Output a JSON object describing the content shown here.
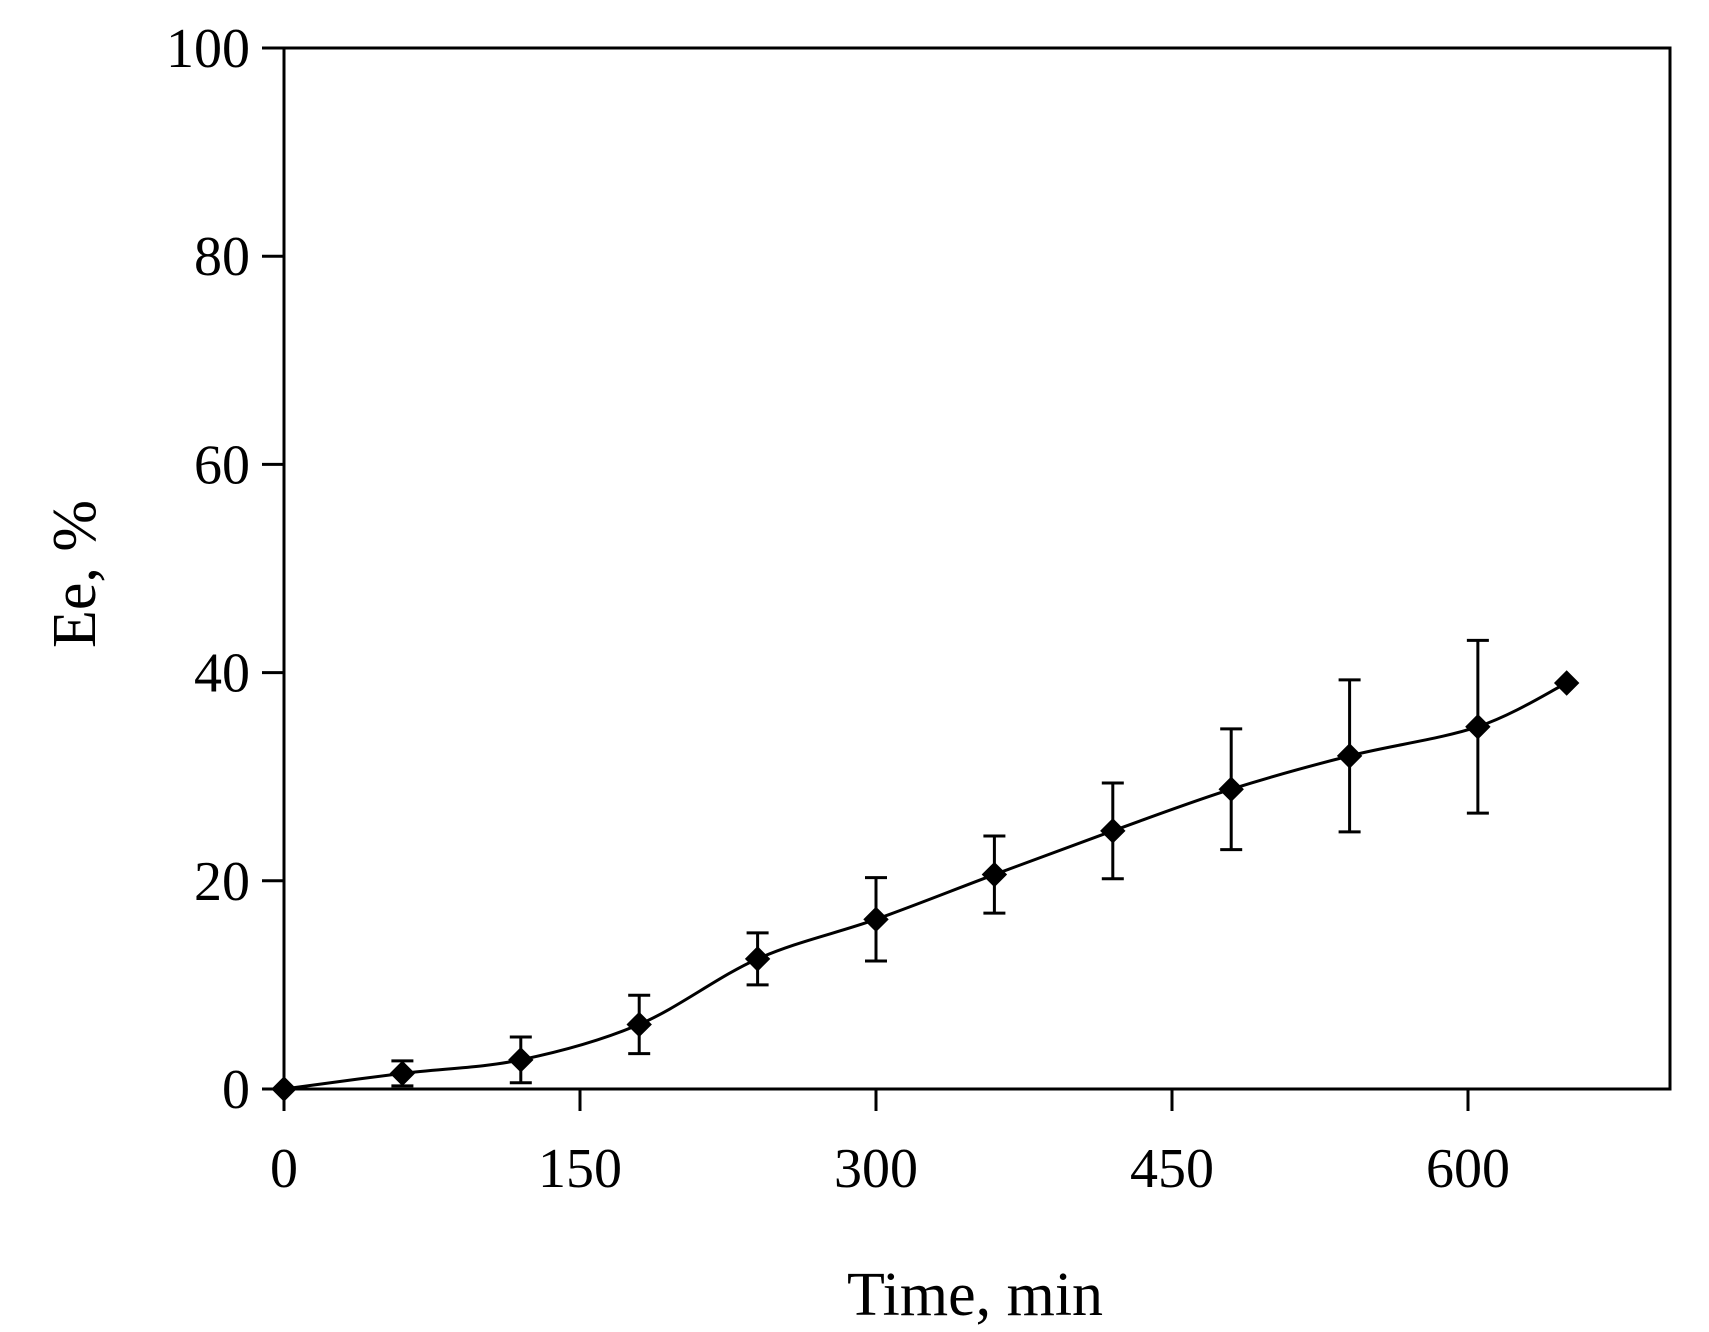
{
  "chart_data": {
    "type": "line",
    "title": "",
    "xlabel": "Time, min",
    "ylabel": "Ee, %",
    "xlim": [
      0,
      700
    ],
    "ylim": [
      0,
      100
    ],
    "x_ticks": [
      0,
      150,
      300,
      450,
      600
    ],
    "y_ticks": [
      0,
      20,
      40,
      60,
      80,
      100
    ],
    "grid": false,
    "legend": "none",
    "series": [
      {
        "marker": "diamond",
        "color": "#000000",
        "smooth": true,
        "points": [
          {
            "x": 0,
            "y": 0,
            "err": 0
          },
          {
            "x": 60,
            "y": 1.5,
            "err": 1.2
          },
          {
            "x": 120,
            "y": 2.8,
            "err": 2.2
          },
          {
            "x": 180,
            "y": 6.2,
            "err": 2.8
          },
          {
            "x": 240,
            "y": 12.5,
            "err": 2.5
          },
          {
            "x": 300,
            "y": 16.3,
            "err": 4.0
          },
          {
            "x": 360,
            "y": 20.6,
            "err": 3.7
          },
          {
            "x": 420,
            "y": 24.8,
            "err": 4.6
          },
          {
            "x": 480,
            "y": 28.8,
            "err": 5.8
          },
          {
            "x": 540,
            "y": 32.0,
            "err": 7.3
          },
          {
            "x": 605,
            "y": 34.8,
            "err": 8.3
          },
          {
            "x": 650,
            "y": 39.0,
            "err": 0
          }
        ]
      }
    ]
  }
}
